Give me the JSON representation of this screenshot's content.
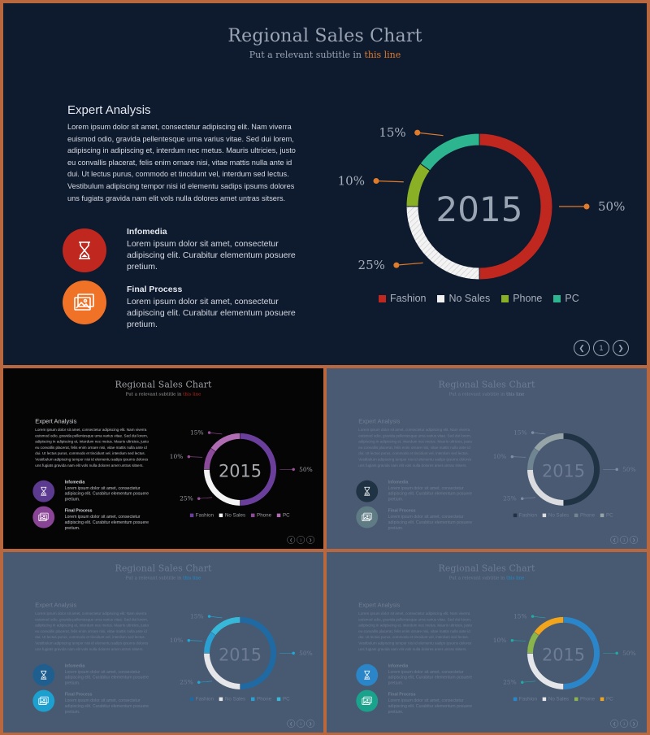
{
  "variants": [
    {
      "bg": "#0e1a2e",
      "title_color": "#9aa4b4",
      "subtitle_color": "#9aa4b4",
      "link_color": "#e07b2a",
      "text_color": "#d4d9e1",
      "heading_color": "#e4e8ef",
      "center_color": "#9aa5b4",
      "label_color": "#a7afbb",
      "pager_color": "#98a4b2",
      "dot_color": "#e07b2a",
      "seg_colors": [
        "#c0271f",
        "#f1f1f1",
        "#8ab025",
        "#2db58f"
      ],
      "hatch": true,
      "icon_colors": [
        "#c0271f",
        "#f07226"
      ]
    },
    {
      "bg": "#050505",
      "title_color": "#9ea0a6",
      "subtitle_color": "#9ea0a6",
      "link_color": "#c0271f",
      "text_color": "#bfc2c8",
      "heading_color": "#d6d8dc",
      "center_color": "#a7a9ae",
      "label_color": "#9a9ca2",
      "pager_color": "#777a80",
      "dot_color": "#9b4f9a",
      "seg_colors": [
        "#6a3f9c",
        "#f4f4f4",
        "#8c4a9a",
        "#b06cb2"
      ],
      "hatch": false,
      "icon_colors": [
        "#5b3a8f",
        "#8a4495"
      ]
    },
    {
      "bg": "#4a5a72",
      "title_color": "#6d7c93",
      "subtitle_color": "#6d7c93",
      "link_color": "#7e8da3",
      "text_color": "#6e7d92",
      "heading_color": "#6f7e93",
      "center_color": "#6d7c92",
      "label_color": "#6d7c92",
      "pager_color": "#7e8da3",
      "dot_color": "#7e8da3",
      "seg_colors": [
        "#1f3344",
        "#dadcdf",
        "#6f8591",
        "#97a4a7"
      ],
      "hatch": false,
      "icon_colors": [
        "#1f3344",
        "#5f7b84"
      ]
    },
    {
      "bg": "#485a72",
      "title_color": "#6c7b92",
      "subtitle_color": "#6c7b92",
      "link_color": "#1b8fd2",
      "text_color": "#6c7b92",
      "heading_color": "#6f7e93",
      "center_color": "#6d7c92",
      "label_color": "#6d7c92",
      "pager_color": "#7e8da3",
      "dot_color": "#1fa9d8",
      "seg_colors": [
        "#1f6aa3",
        "#e4e6ea",
        "#2aa0d2",
        "#38b8d8"
      ],
      "hatch": false,
      "icon_colors": [
        "#1f5f8f",
        "#1ca0d0"
      ]
    },
    {
      "bg": "#485a72",
      "title_color": "#6c7b92",
      "subtitle_color": "#6c7b92",
      "link_color": "#1b8fd2",
      "text_color": "#6c7b92",
      "heading_color": "#6f7e93",
      "center_color": "#6d7c92",
      "label_color": "#6d7c92",
      "pager_color": "#7e8da3",
      "dot_color": "#1fa9a8",
      "seg_colors": [
        "#2a86c8",
        "#e4e6ea",
        "#8ab54a",
        "#f0a51c"
      ],
      "hatch": false,
      "icon_colors": [
        "#2a86c8",
        "#1aa38c"
      ]
    }
  ],
  "slide": {
    "title": "Regional Sales Chart",
    "subtitle_prefix": "Put a relevant subtitle in ",
    "subtitle_link": "this line",
    "analysis_heading": "Expert Analysis",
    "analysis_body": "Lorem ipsum dolor sit amet, consectetur adipiscing elit. Nam viverra euismod odio, gravida pellentesque urna varius vitae. Sed dui lorem, adipiscing in adipiscing et, interdum nec metus. Mauris ultricies, justo eu convallis placerat, felis enim ornare nisi, vitae mattis nulla ante id dui. Ut lectus purus, commodo et tincidunt vel, interdum sed lectus. Vestibulum adipiscing tempor nisi id elementu sadips ipsums dolores uns fugiats gravida nam elit vols nulla dolores amet untras sitsers.",
    "features": [
      {
        "title": "Infomedia",
        "desc": "Lorem ipsum dolor sit amet, consectetur adipiscing elit. Curabitur elementum posuere pretium.",
        "icon": "hourglass-icon"
      },
      {
        "title": "Final Process",
        "desc": "Lorem ipsum dolor sit amet, consectetur adipiscing elit. Curabitur elementum posuere pretium.",
        "icon": "image-icon"
      }
    ],
    "page_number": "1"
  },
  "chart_data": {
    "type": "pie",
    "style": "donut",
    "center_label": "2015",
    "categories": [
      "Fashion",
      "No Sales",
      "Phone",
      "PC"
    ],
    "values": [
      50,
      25,
      10,
      15
    ],
    "data_labels": [
      "50%",
      "25%",
      "10%",
      "15%"
    ],
    "legend": "bottom"
  }
}
